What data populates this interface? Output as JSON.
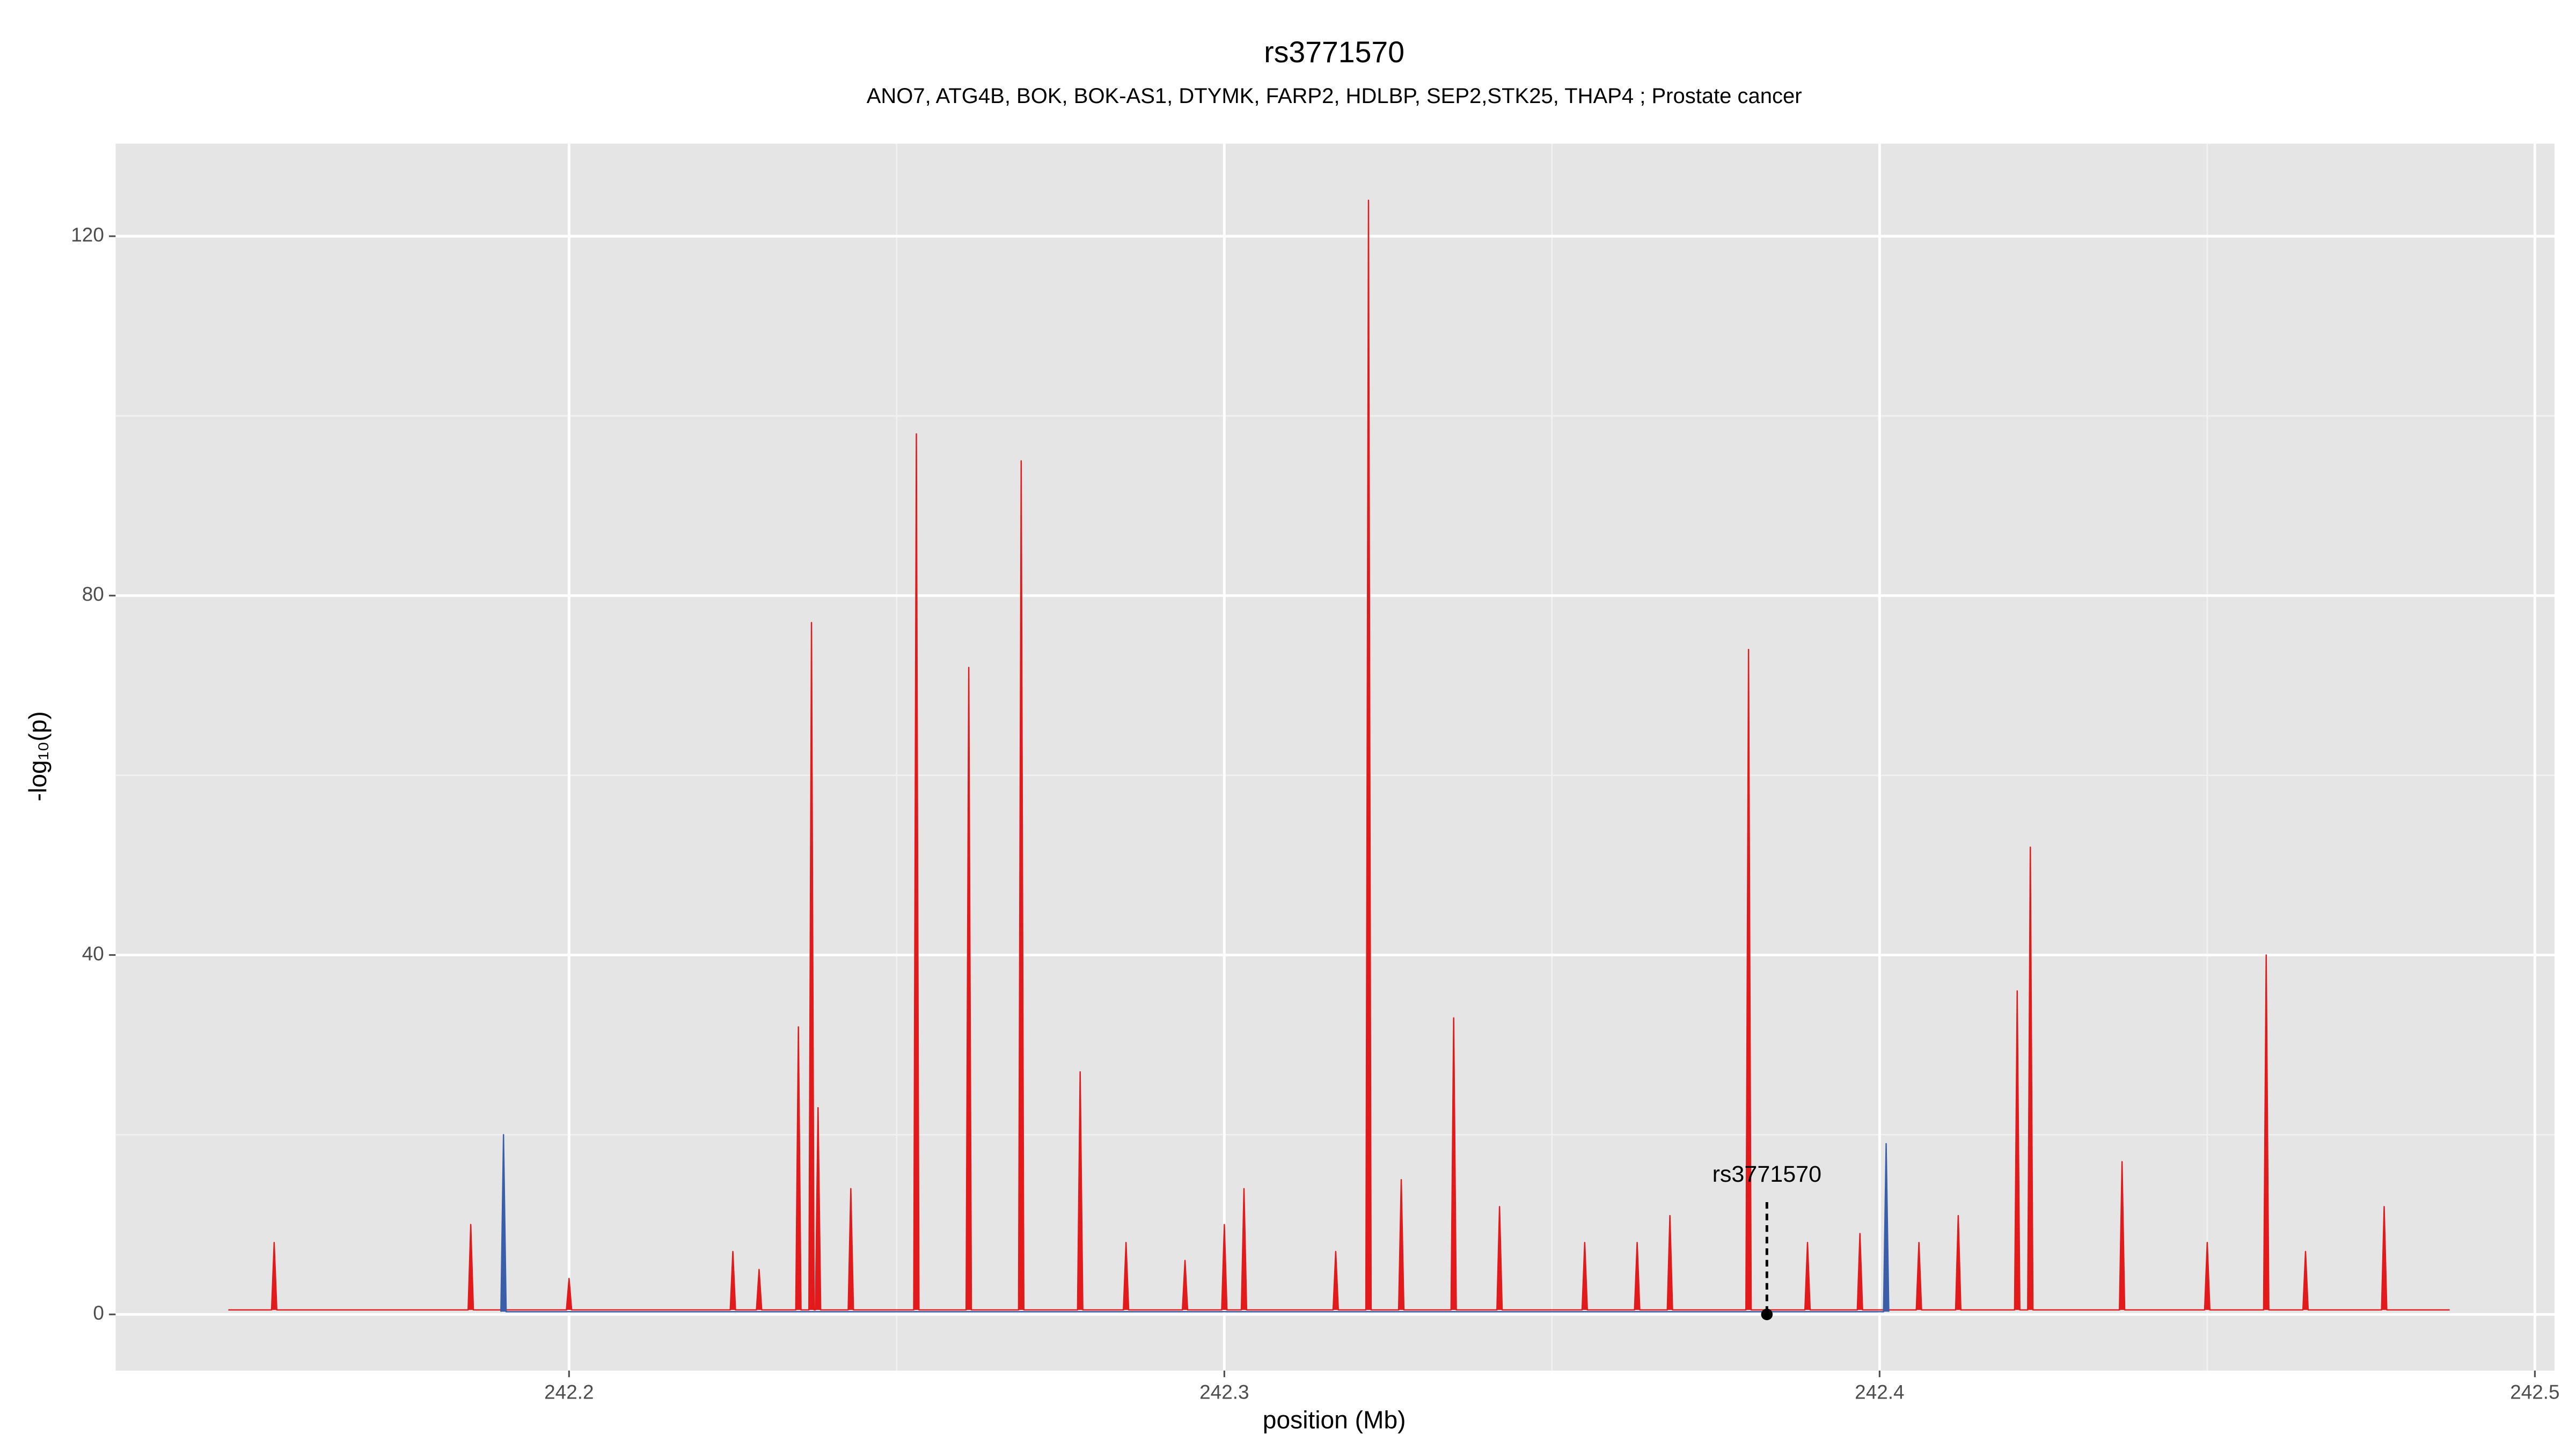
{
  "chart_data": {
    "type": "area",
    "title": "rs3771570",
    "subtitle": "ANO7, ATG4B, BOK, BOK-AS1, DTYMK, FARP2, HDLBP, SEP2,STK25, THAP4 ; Prostate cancer",
    "x_label": "position (Mb)",
    "y_label": "-log₁₀(p)",
    "xlim": [
      242.1308,
      242.503
    ],
    "ylim": [
      -6.25,
      130.3
    ],
    "xticks": [
      242.2,
      242.3,
      242.4,
      242.5
    ],
    "yticks": [
      0,
      40,
      80,
      120
    ],
    "grid": true,
    "series": [
      {
        "color": "#e31a1c",
        "x": [
          242.148,
          242.1546,
          242.155,
          242.1554,
          242.1846,
          242.185,
          242.1854,
          242.1996,
          242.2,
          242.2004,
          242.2246,
          242.225,
          242.2254,
          242.2286,
          242.229,
          242.2294,
          242.2346,
          242.235,
          242.2354,
          242.2366,
          242.237,
          242.2374,
          242.2376,
          242.238,
          242.2384,
          242.2426,
          242.243,
          242.2434,
          242.2526,
          242.253,
          242.2534,
          242.2606,
          242.261,
          242.2614,
          242.2686,
          242.269,
          242.2694,
          242.2776,
          242.278,
          242.2784,
          242.2846,
          242.285,
          242.2854,
          242.2936,
          242.294,
          242.2944,
          242.2996,
          242.3,
          242.3004,
          242.3026,
          242.303,
          242.3034,
          242.3166,
          242.317,
          242.3174,
          242.3216,
          242.322,
          242.3224,
          242.3266,
          242.327,
          242.3274,
          242.3346,
          242.335,
          242.3354,
          242.3416,
          242.342,
          242.3424,
          242.3546,
          242.355,
          242.3554,
          242.3626,
          242.363,
          242.3634,
          242.3676,
          242.368,
          242.3684,
          242.3796,
          242.38,
          242.3804,
          242.3886,
          242.389,
          242.3894,
          242.3966,
          242.397,
          242.3974,
          242.4056,
          242.406,
          242.4064,
          242.4116,
          242.412,
          242.4124,
          242.4206,
          242.421,
          242.4214,
          242.4226,
          242.423,
          242.4234,
          242.4366,
          242.437,
          242.4374,
          242.4496,
          242.45,
          242.4504,
          242.4586,
          242.459,
          242.4594,
          242.4646,
          242.465,
          242.4654,
          242.4766,
          242.477,
          242.4774,
          242.487
        ],
        "values": [
          0.5,
          0.5,
          8,
          0.5,
          0.5,
          10,
          0.5,
          0.5,
          4,
          0.5,
          0.5,
          7,
          0.5,
          0.5,
          5,
          0.5,
          0.5,
          32,
          0.5,
          0.5,
          77,
          0.5,
          0.5,
          23,
          0.5,
          0.5,
          14,
          0.5,
          0.5,
          98,
          0.5,
          0.5,
          72,
          0.5,
          0.5,
          95,
          0.5,
          0.5,
          27,
          0.5,
          0.5,
          8,
          0.5,
          0.5,
          6,
          0.5,
          0.5,
          10,
          0.5,
          0.5,
          14,
          0.5,
          0.5,
          7,
          0.5,
          0.5,
          124,
          0.5,
          0.5,
          15,
          0.5,
          0.5,
          33,
          0.5,
          0.5,
          12,
          0.5,
          0.5,
          8,
          0.5,
          0.5,
          8,
          0.5,
          0.5,
          11,
          0.5,
          0.5,
          74,
          0.5,
          0.5,
          8,
          0.5,
          0.5,
          9,
          0.5,
          0.5,
          8,
          0.5,
          0.5,
          11,
          0.5,
          0.5,
          36,
          0.5,
          0.5,
          52,
          0.5,
          0.5,
          17,
          0.5,
          0.5,
          8,
          0.5,
          0.5,
          40,
          0.5,
          0.5,
          7,
          0.5,
          0.5,
          12,
          0.5,
          0.5
        ]
      },
      {
        "color": "#3a5fa8",
        "x": [
          242.1896,
          242.19,
          242.1904,
          242.4006,
          242.401,
          242.4014
        ],
        "values": [
          0.3,
          20,
          0.3,
          0.3,
          19,
          0.3
        ]
      }
    ],
    "annotation": {
      "label": "rs3771570",
      "x": 242.3828,
      "y": 0
    }
  }
}
